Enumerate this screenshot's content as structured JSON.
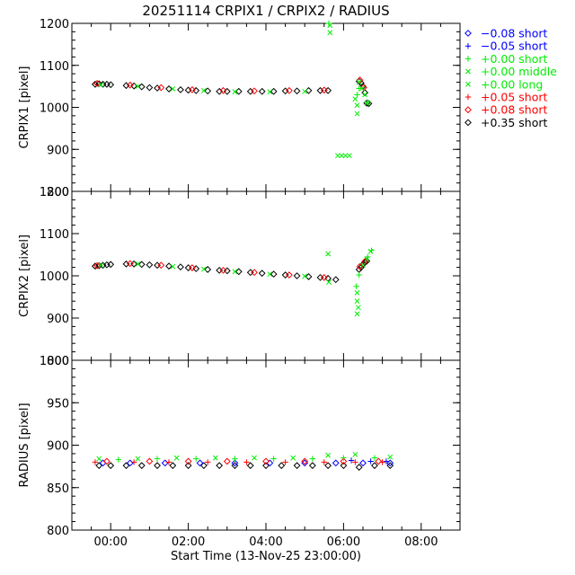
{
  "title": "20251114 CRPIX1 / CRPIX2 / RADIUS",
  "colors": {
    "blue": "#0000ff",
    "green": "#00ee00",
    "red": "#ff0000",
    "black": "#000000"
  },
  "legend": [
    {
      "symbol": "diamond",
      "color": "#0000ff",
      "label": "−0.08 short"
    },
    {
      "symbol": "plus",
      "color": "#0000ff",
      "label": "−0.05 short"
    },
    {
      "symbol": "plus",
      "color": "#00ee00",
      "label": "+0.00 short"
    },
    {
      "symbol": "cross",
      "color": "#00ee00",
      "label": "+0.00 middle"
    },
    {
      "symbol": "cross",
      "color": "#00ee00",
      "label": "+0.00 long"
    },
    {
      "symbol": "plus",
      "color": "#ff0000",
      "label": "+0.05 short"
    },
    {
      "symbol": "diamond",
      "color": "#ff0000",
      "label": "+0.08 short"
    },
    {
      "symbol": "diamond",
      "color": "#000000",
      "label": "+0.35 short"
    }
  ],
  "chart_data": [
    {
      "type": "scatter",
      "ylabel": "CRPIX1 [pixel]",
      "ylim": [
        800,
        1200
      ],
      "yticks": [
        800,
        900,
        1000,
        1100,
        1200
      ],
      "xlim": [
        -1,
        9
      ],
      "series": [
        {
          "symbol": "diamond",
          "color": "#000000",
          "points": [
            [
              -0.4,
              1055
            ],
            [
              -0.3,
              1056
            ],
            [
              -0.2,
              1055
            ],
            [
              -0.1,
              1055
            ],
            [
              0.0,
              1054
            ],
            [
              0.4,
              1052
            ],
            [
              0.6,
              1051
            ],
            [
              0.8,
              1049
            ],
            [
              1.0,
              1047
            ],
            [
              1.2,
              1046
            ],
            [
              1.5,
              1044
            ],
            [
              1.8,
              1042
            ],
            [
              2.0,
              1041
            ],
            [
              2.2,
              1040
            ],
            [
              2.5,
              1039
            ],
            [
              2.8,
              1038
            ],
            [
              3.0,
              1038
            ],
            [
              3.3,
              1038
            ],
            [
              3.6,
              1038
            ],
            [
              3.9,
              1038
            ],
            [
              4.2,
              1038
            ],
            [
              4.5,
              1039
            ],
            [
              4.8,
              1039
            ],
            [
              5.1,
              1040
            ],
            [
              5.4,
              1040
            ],
            [
              5.6,
              1040
            ],
            [
              6.4,
              1062
            ],
            [
              6.45,
              1058
            ],
            [
              6.5,
              1050
            ],
            [
              6.55,
              1035
            ],
            [
              6.6,
              1010
            ],
            [
              6.65,
              1009
            ]
          ]
        },
        {
          "symbol": "diamond",
          "color": "#ff0000",
          "points": [
            [
              -0.35,
              1057
            ],
            [
              0.5,
              1053
            ],
            [
              1.3,
              1047
            ],
            [
              2.1,
              1042
            ],
            [
              2.9,
              1040
            ],
            [
              3.7,
              1039
            ],
            [
              4.6,
              1040
            ],
            [
              5.5,
              1041
            ],
            [
              6.42,
              1065
            ],
            [
              6.52,
              1047
            ]
          ]
        },
        {
          "symbol": "cross",
          "color": "#00ee00",
          "points": [
            [
              -0.25,
              1054
            ],
            [
              0.7,
              1050
            ],
            [
              1.6,
              1044
            ],
            [
              2.4,
              1040
            ],
            [
              3.2,
              1037
            ],
            [
              4.1,
              1037
            ],
            [
              5.0,
              1038
            ],
            [
              5.65,
              1195
            ],
            [
              5.65,
              1178
            ],
            [
              6.3,
              1020
            ],
            [
              6.35,
              1005
            ],
            [
              6.35,
              985
            ],
            [
              6.4,
              1060
            ],
            [
              6.48,
              1045
            ],
            [
              6.55,
              1030
            ],
            [
              6.6,
              1010
            ],
            [
              5.85,
              885
            ],
            [
              5.95,
              885
            ],
            [
              6.05,
              885
            ],
            [
              6.15,
              885
            ]
          ]
        },
        {
          "symbol": "plus",
          "color": "#00ee00",
          "points": [
            [
              6.35,
              1030
            ],
            [
              6.4,
              1045
            ],
            [
              5.62,
              1200
            ],
            [
              6.62,
              1012
            ]
          ]
        }
      ]
    },
    {
      "type": "scatter",
      "ylabel": "CRPIX2 [pixel]",
      "ylim": [
        800,
        1200
      ],
      "yticks": [
        800,
        900,
        1000,
        1100,
        1200
      ],
      "xlim": [
        -1,
        9
      ],
      "series": [
        {
          "symbol": "diamond",
          "color": "#000000",
          "points": [
            [
              -0.4,
              1023
            ],
            [
              -0.3,
              1024
            ],
            [
              -0.2,
              1025
            ],
            [
              -0.1,
              1026
            ],
            [
              0.0,
              1027
            ],
            [
              0.4,
              1028
            ],
            [
              0.6,
              1028
            ],
            [
              0.8,
              1027
            ],
            [
              1.0,
              1026
            ],
            [
              1.2,
              1025
            ],
            [
              1.5,
              1023
            ],
            [
              1.8,
              1021
            ],
            [
              2.0,
              1019
            ],
            [
              2.2,
              1017
            ],
            [
              2.5,
              1015
            ],
            [
              2.8,
              1013
            ],
            [
              3.0,
              1012
            ],
            [
              3.3,
              1010
            ],
            [
              3.6,
              1008
            ],
            [
              3.9,
              1006
            ],
            [
              4.2,
              1004
            ],
            [
              4.5,
              1002
            ],
            [
              4.8,
              1000
            ],
            [
              5.1,
              998
            ],
            [
              5.4,
              996
            ],
            [
              5.6,
              994
            ],
            [
              5.8,
              991
            ],
            [
              6.4,
              1015
            ],
            [
              6.45,
              1020
            ],
            [
              6.5,
              1027
            ],
            [
              6.55,
              1032
            ],
            [
              6.6,
              1035
            ]
          ]
        },
        {
          "symbol": "diamond",
          "color": "#ff0000",
          "points": [
            [
              -0.35,
              1024
            ],
            [
              0.5,
              1029
            ],
            [
              1.3,
              1025
            ],
            [
              2.1,
              1019
            ],
            [
              2.9,
              1013
            ],
            [
              3.7,
              1008
            ],
            [
              4.6,
              1002
            ],
            [
              5.5,
              996
            ],
            [
              6.42,
              1022
            ],
            [
              6.55,
              1034
            ]
          ]
        },
        {
          "symbol": "cross",
          "color": "#00ee00",
          "points": [
            [
              -0.25,
              1025
            ],
            [
              0.7,
              1028
            ],
            [
              1.6,
              1022
            ],
            [
              2.4,
              1016
            ],
            [
              3.2,
              1010
            ],
            [
              4.1,
              1004
            ],
            [
              5.0,
              999
            ],
            [
              5.6,
              1052
            ],
            [
              5.62,
              985
            ],
            [
              6.35,
              960
            ],
            [
              6.35,
              940
            ],
            [
              6.38,
              925
            ],
            [
              6.35,
              910
            ],
            [
              6.5,
              1025
            ],
            [
              6.6,
              1040
            ],
            [
              6.7,
              1058
            ]
          ]
        },
        {
          "symbol": "plus",
          "color": "#00ee00",
          "points": [
            [
              6.33,
              975
            ],
            [
              6.4,
              1002
            ],
            [
              6.62,
              1045
            ],
            [
              6.72,
              1060
            ]
          ]
        }
      ]
    },
    {
      "type": "scatter",
      "ylabel": "RADIUS [pixel]",
      "ylim": [
        800,
        1000
      ],
      "yticks": [
        800,
        850,
        900,
        950,
        1000
      ],
      "xlim": [
        -1,
        9
      ],
      "xlabel": "Start Time (13-Nov-25 23:00:00)",
      "xticks": [
        0,
        2,
        4,
        6,
        8
      ],
      "xticklabels": [
        "00:00",
        "02:00",
        "04:00",
        "06:00",
        "08:00"
      ],
      "series": [
        {
          "symbol": "diamond",
          "color": "#000000",
          "points": [
            [
              -0.3,
              876
            ],
            [
              0.0,
              876
            ],
            [
              0.4,
              876
            ],
            [
              0.8,
              876
            ],
            [
              1.2,
              876
            ],
            [
              1.6,
              876
            ],
            [
              2.0,
              876
            ],
            [
              2.4,
              876
            ],
            [
              2.8,
              876
            ],
            [
              3.2,
              876
            ],
            [
              3.6,
              876
            ],
            [
              4.0,
              876
            ],
            [
              4.4,
              876
            ],
            [
              4.8,
              876
            ],
            [
              5.2,
              876
            ],
            [
              5.6,
              876
            ],
            [
              6.0,
              876
            ],
            [
              6.4,
              874
            ],
            [
              6.8,
              876
            ],
            [
              7.2,
              876
            ]
          ]
        },
        {
          "symbol": "diamond",
          "color": "#0000ff",
          "points": [
            [
              -0.2,
              879
            ],
            [
              0.5,
              879
            ],
            [
              1.4,
              879
            ],
            [
              2.3,
              879
            ],
            [
              3.2,
              879
            ],
            [
              4.1,
              879
            ],
            [
              5.0,
              879
            ],
            [
              5.8,
              879
            ],
            [
              6.5,
              879
            ],
            [
              7.2,
              879
            ]
          ]
        },
        {
          "symbol": "plus",
          "color": "#0000ff",
          "points": [
            [
              6.2,
              882
            ],
            [
              6.7,
              881
            ],
            [
              7.1,
              881
            ]
          ]
        },
        {
          "symbol": "plus",
          "color": "#ff0000",
          "points": [
            [
              -0.4,
              880
            ],
            [
              0.6,
              880
            ],
            [
              1.5,
              880
            ],
            [
              2.5,
              880
            ],
            [
              3.5,
              880
            ],
            [
              4.5,
              880
            ],
            [
              5.5,
              880
            ],
            [
              6.3,
              880
            ],
            [
              7.0,
              880
            ]
          ]
        },
        {
          "symbol": "diamond",
          "color": "#ff0000",
          "points": [
            [
              -0.1,
              881
            ],
            [
              1.0,
              881
            ],
            [
              2.0,
              881
            ],
            [
              3.0,
              881
            ],
            [
              4.0,
              881
            ],
            [
              5.0,
              881
            ],
            [
              6.0,
              881
            ],
            [
              6.9,
              881
            ]
          ]
        },
        {
          "symbol": "cross",
          "color": "#00ee00",
          "points": [
            [
              -0.3,
              884
            ],
            [
              0.7,
              884
            ],
            [
              1.7,
              885
            ],
            [
              2.7,
              885
            ],
            [
              3.7,
              885
            ],
            [
              4.7,
              885
            ],
            [
              5.6,
              888
            ],
            [
              6.3,
              889
            ],
            [
              7.2,
              886
            ]
          ]
        },
        {
          "symbol": "plus",
          "color": "#00ee00",
          "points": [
            [
              0.2,
              883
            ],
            [
              1.2,
              884
            ],
            [
              2.2,
              884
            ],
            [
              3.2,
              884
            ],
            [
              4.2,
              884
            ],
            [
              5.2,
              884
            ],
            [
              6.0,
              885
            ],
            [
              6.8,
              885
            ]
          ]
        }
      ]
    }
  ]
}
